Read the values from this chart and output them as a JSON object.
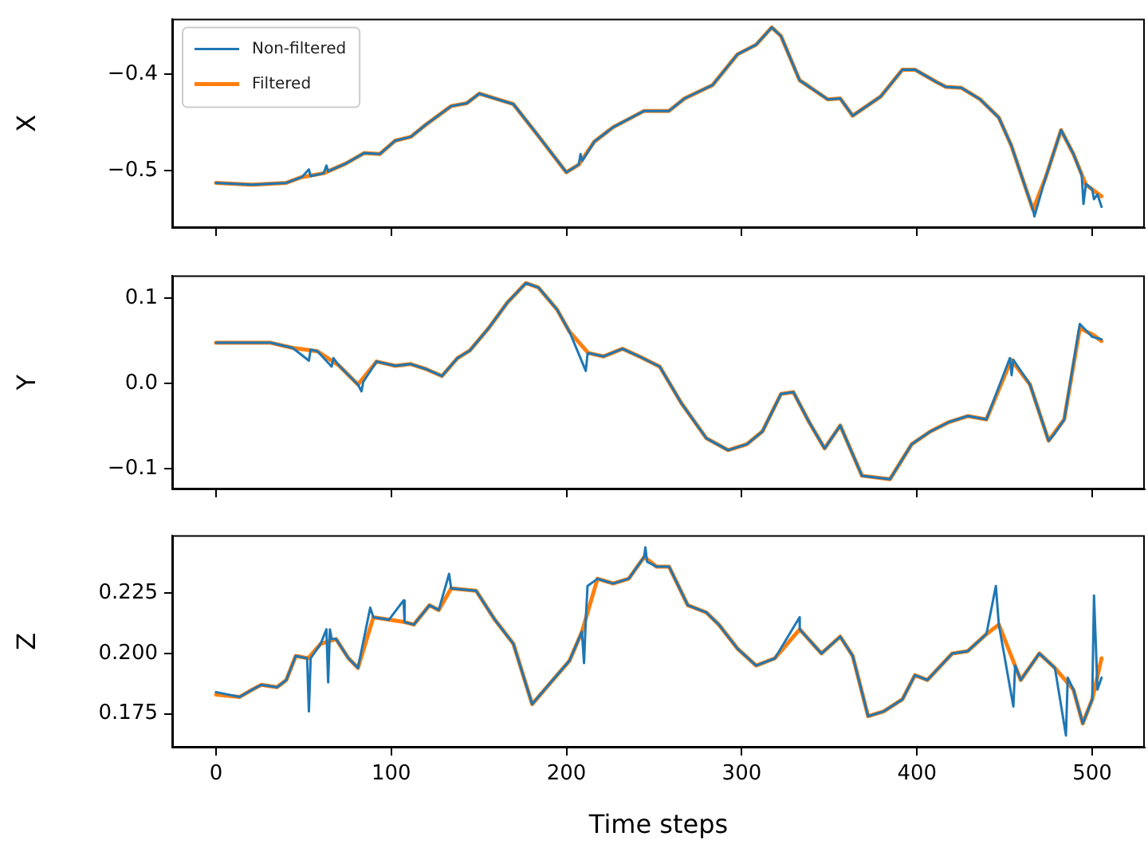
{
  "chart_data": [
    {
      "type": "line",
      "ylabel": "X",
      "xlim": [
        -25,
        530
      ],
      "xticks": [
        0,
        100,
        200,
        300,
        400,
        500
      ],
      "ylim": [
        -0.56,
        -0.342
      ],
      "yticks": [
        -0.5,
        -0.4
      ],
      "grid": false,
      "legend": "top left",
      "tick_labels": "y",
      "series": [
        {
          "name": "Non-filtered",
          "color": "#1f77b4",
          "x": [
            0,
            20.6,
            40.1,
            49,
            53,
            54,
            61.4,
            63,
            64,
            73.9,
            84.5,
            93.4,
            102.3,
            111.2,
            120,
            134.2,
            143.1,
            150.2,
            169.7,
            183.9,
            199.9,
            207,
            208,
            209,
            215.9,
            226.6,
            244.3,
            258.5,
            267.4,
            283.4,
            297.6,
            308.2,
            317.1,
            322.4,
            333,
            349.1,
            356.2,
            363.3,
            379.3,
            391.7,
            398.8,
            411.2,
            416.5,
            425.4,
            436.1,
            446.7,
            453.8,
            466.2,
            467,
            473.3,
            482.2,
            489.3,
            494,
            495,
            496.4,
            500,
            501,
            503,
            505.3
          ],
          "values": [
            -0.513,
            -0.515,
            -0.513,
            -0.507,
            -0.499,
            -0.506,
            -0.503,
            -0.495,
            -0.501,
            -0.493,
            -0.482,
            -0.483,
            -0.469,
            -0.465,
            -0.452,
            -0.433,
            -0.43,
            -0.42,
            -0.431,
            -0.464,
            -0.502,
            -0.494,
            -0.483,
            -0.49,
            -0.47,
            -0.455,
            -0.438,
            -0.438,
            -0.425,
            -0.411,
            -0.379,
            -0.369,
            -0.351,
            -0.36,
            -0.406,
            -0.426,
            -0.425,
            -0.443,
            -0.423,
            -0.395,
            -0.395,
            -0.408,
            -0.413,
            -0.414,
            -0.426,
            -0.445,
            -0.474,
            -0.541,
            -0.548,
            -0.508,
            -0.458,
            -0.483,
            -0.505,
            -0.535,
            -0.514,
            -0.52,
            -0.53,
            -0.525,
            -0.538
          ]
        },
        {
          "name": "Filtered",
          "color": "#ff7f0e",
          "x": [
            0,
            20.6,
            40.1,
            49,
            61.4,
            73.9,
            84.5,
            93.4,
            102.3,
            111.2,
            120,
            134.2,
            143.1,
            150.2,
            169.7,
            183.9,
            199.9,
            207,
            215.9,
            226.6,
            244.3,
            258.5,
            267.4,
            283.4,
            297.6,
            308.2,
            317.1,
            322.4,
            333,
            349.1,
            356.2,
            363.3,
            379.3,
            391.7,
            398.8,
            411.2,
            416.5,
            425.4,
            436.1,
            446.7,
            453.8,
            466.2,
            473.3,
            482.2,
            489.3,
            496.4,
            505.3
          ],
          "values": [
            -0.513,
            -0.515,
            -0.513,
            -0.507,
            -0.503,
            -0.493,
            -0.482,
            -0.483,
            -0.469,
            -0.465,
            -0.452,
            -0.433,
            -0.43,
            -0.42,
            -0.431,
            -0.464,
            -0.502,
            -0.494,
            -0.47,
            -0.455,
            -0.438,
            -0.438,
            -0.425,
            -0.411,
            -0.379,
            -0.369,
            -0.351,
            -0.36,
            -0.406,
            -0.426,
            -0.425,
            -0.443,
            -0.423,
            -0.395,
            -0.395,
            -0.408,
            -0.413,
            -0.414,
            -0.426,
            -0.445,
            -0.474,
            -0.541,
            -0.508,
            -0.458,
            -0.483,
            -0.515,
            -0.527
          ]
        }
      ]
    },
    {
      "type": "line",
      "ylabel": "Y",
      "xlim": [
        -25,
        530
      ],
      "xticks": [
        0,
        100,
        200,
        300,
        400,
        500
      ],
      "ylim": [
        -0.124,
        0.127
      ],
      "yticks": [
        -0.1,
        {
          "value": 0,
          "label": "0.0"
        },
        0.1
      ],
      "grid": false,
      "tick_labels": "y",
      "series": [
        {
          "color": "#1f77b4",
          "x": [
            0,
            31.2,
            43.7,
            53,
            54,
            57.9,
            66,
            67,
            70.3,
            81,
            83,
            84,
            91.6,
            102.3,
            111.1,
            120,
            128.9,
            137.8,
            144.9,
            155.5,
            166.2,
            176.8,
            183.9,
            194.6,
            201.7,
            211,
            212,
            212.4,
            221.2,
            231.9,
            242.5,
            253.2,
            265.6,
            279.8,
            292.2,
            302.9,
            311.8,
            322.4,
            329.5,
            338.4,
            347.3,
            356.2,
            368.6,
            384.6,
            397,
            407.7,
            418.3,
            429,
            439.6,
            453,
            454,
            455,
            464.5,
            475.1,
            478,
            484,
            492.9,
            500,
            505.3
          ],
          "values": [
            0.048,
            0.048,
            0.042,
            0.027,
            0.04,
            0.038,
            0.02,
            0.03,
            0.021,
            -0.001,
            -0.009,
            0.002,
            0.026,
            0.021,
            0.023,
            0.017,
            0.009,
            0.03,
            0.039,
            0.065,
            0.095,
            0.118,
            0.113,
            0.087,
            0.061,
            0.015,
            0.035,
            0.036,
            0.032,
            0.041,
            0.031,
            0.02,
            -0.023,
            -0.064,
            -0.078,
            -0.071,
            -0.056,
            -0.012,
            -0.01,
            -0.045,
            -0.076,
            -0.049,
            -0.108,
            -0.112,
            -0.071,
            -0.056,
            -0.045,
            -0.038,
            -0.042,
            0.03,
            0.01,
            0.028,
            -0.001,
            -0.067,
            -0.06,
            -0.042,
            0.07,
            0.055,
            0.052
          ]
        },
        {
          "color": "#ff7f0e",
          "x": [
            0,
            31.2,
            43.7,
            57.9,
            70.3,
            81,
            91.6,
            102.3,
            111.1,
            120,
            128.9,
            137.8,
            144.9,
            155.5,
            166.2,
            176.8,
            183.9,
            194.6,
            201.7,
            212.4,
            221.2,
            231.9,
            242.5,
            253.2,
            265.6,
            279.8,
            292.2,
            302.9,
            311.8,
            322.4,
            329.5,
            338.4,
            347.3,
            356.2,
            368.6,
            384.6,
            397,
            407.7,
            418.3,
            429,
            439.6,
            453.8,
            464.5,
            475.1,
            484,
            492.9,
            500,
            505.3
          ],
          "values": [
            0.048,
            0.048,
            0.042,
            0.038,
            0.021,
            -0.001,
            0.026,
            0.021,
            0.023,
            0.017,
            0.009,
            0.03,
            0.039,
            0.065,
            0.095,
            0.118,
            0.113,
            0.087,
            0.061,
            0.036,
            0.032,
            0.041,
            0.031,
            0.02,
            -0.023,
            -0.064,
            -0.078,
            -0.071,
            -0.056,
            -0.012,
            -0.01,
            -0.045,
            -0.076,
            -0.049,
            -0.108,
            -0.112,
            -0.071,
            -0.056,
            -0.045,
            -0.038,
            -0.042,
            0.028,
            -0.001,
            -0.067,
            -0.042,
            0.065,
            0.058,
            0.05
          ]
        }
      ]
    },
    {
      "type": "line",
      "ylabel": "Z",
      "xlabel": "Time steps",
      "xlim": [
        -25,
        530
      ],
      "xticks": [
        0,
        100,
        200,
        300,
        400,
        500
      ],
      "ylim": [
        0.161,
        0.249
      ],
      "yticks": [
        0.175,
        {
          "value": 0.2,
          "label": "0.200"
        },
        0.225
      ],
      "grid": false,
      "series": [
        {
          "color": "#1f77b4",
          "x": [
            0,
            13.5,
            20.6,
            25.9,
            34.8,
            40.1,
            45.5,
            52,
            53,
            54,
            59.7,
            63,
            64,
            65,
            66,
            68.5,
            75.6,
            81,
            88,
            89.8,
            98.7,
            107,
            107.6,
            112.9,
            121.8,
            127.1,
            133,
            134.2,
            148.4,
            159.1,
            169.7,
            180.4,
            191,
            201.7,
            208.8,
            210,
            211,
            212,
            217.7,
            226.6,
            235.5,
            244.3,
            245,
            246,
            251.4,
            258.5,
            269.2,
            279.8,
            286.9,
            297.6,
            308.2,
            318.9,
            333,
            333.1,
            345.5,
            356.2,
            363.3,
            372.1,
            381,
            391.7,
            398.8,
            405.9,
            420.1,
            429,
            439.6,
            445,
            446.7,
            455,
            456,
            459.2,
            469.8,
            478.7,
            485,
            486,
            489.3,
            494.6,
            500,
            501,
            503,
            505.3
          ],
          "values": [
            0.184,
            0.182,
            0.185,
            0.187,
            0.186,
            0.189,
            0.199,
            0.198,
            0.176,
            0.198,
            0.204,
            0.21,
            0.188,
            0.21,
            0.206,
            0.206,
            0.198,
            0.194,
            0.219,
            0.215,
            0.214,
            0.222,
            0.213,
            0.212,
            0.22,
            0.218,
            0.233,
            0.227,
            0.226,
            0.214,
            0.204,
            0.179,
            0.188,
            0.197,
            0.209,
            0.196,
            0.214,
            0.228,
            0.231,
            0.229,
            0.231,
            0.24,
            0.244,
            0.238,
            0.236,
            0.236,
            0.22,
            0.217,
            0.212,
            0.202,
            0.195,
            0.198,
            0.215,
            0.21,
            0.2,
            0.207,
            0.199,
            0.174,
            0.176,
            0.181,
            0.191,
            0.189,
            0.2,
            0.201,
            0.208,
            0.228,
            0.212,
            0.178,
            0.195,
            0.189,
            0.2,
            0.194,
            0.166,
            0.19,
            0.185,
            0.171,
            0.181,
            0.224,
            0.185,
            0.19
          ]
        },
        {
          "color": "#ff7f0e",
          "x": [
            0,
            13.5,
            20.6,
            25.9,
            34.8,
            40.1,
            45.5,
            52.6,
            59.7,
            68.5,
            75.6,
            81,
            89.8,
            98.7,
            107.6,
            112.9,
            121.8,
            127.1,
            134.2,
            148.4,
            159.1,
            169.7,
            180.4,
            191,
            201.7,
            208.8,
            217.7,
            226.6,
            235.5,
            244.3,
            251.4,
            258.5,
            269.2,
            279.8,
            286.9,
            297.6,
            308.2,
            318.9,
            333.1,
            345.5,
            356.2,
            363.3,
            372.1,
            381,
            391.7,
            398.8,
            405.9,
            420.1,
            429,
            439.6,
            446.7,
            459.2,
            469.8,
            478.7,
            489.3,
            494.6,
            500,
            505.3
          ],
          "values": [
            0.183,
            0.182,
            0.185,
            0.187,
            0.186,
            0.189,
            0.199,
            0.198,
            0.204,
            0.206,
            0.198,
            0.194,
            0.215,
            0.214,
            0.213,
            0.212,
            0.22,
            0.218,
            0.227,
            0.226,
            0.214,
            0.204,
            0.179,
            0.188,
            0.197,
            0.209,
            0.231,
            0.229,
            0.231,
            0.24,
            0.236,
            0.236,
            0.22,
            0.217,
            0.212,
            0.202,
            0.195,
            0.198,
            0.21,
            0.2,
            0.207,
            0.199,
            0.174,
            0.176,
            0.181,
            0.191,
            0.189,
            0.2,
            0.201,
            0.208,
            0.212,
            0.189,
            0.2,
            0.194,
            0.185,
            0.171,
            0.181,
            0.198
          ]
        }
      ]
    }
  ]
}
